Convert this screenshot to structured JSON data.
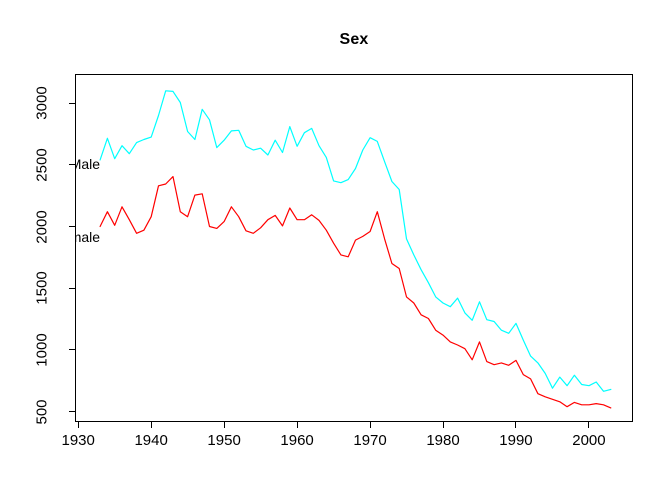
{
  "figure": {
    "background": "#FFFFFF",
    "box_color": "#000000",
    "text_color": "#000000"
  },
  "chart_data": {
    "type": "line",
    "title": "Sex",
    "xlabel": "",
    "ylabel": "",
    "grid": false,
    "legend_position": "inline-labels-at-line-start-clipped-at-left-edge",
    "x_range": [
      1929.7,
      2005.9
    ],
    "y_range": [
      424,
      3228
    ],
    "x_ticks": [
      1930,
      1940,
      1950,
      1960,
      1970,
      1980,
      1990,
      2000
    ],
    "y_ticks": [
      500,
      1000,
      1500,
      2000,
      2500,
      3000
    ],
    "x": [
      1933,
      1934,
      1935,
      1936,
      1937,
      1938,
      1939,
      1940,
      1941,
      1942,
      1943,
      1944,
      1945,
      1946,
      1947,
      1948,
      1949,
      1950,
      1951,
      1952,
      1953,
      1954,
      1955,
      1956,
      1957,
      1958,
      1959,
      1960,
      1961,
      1962,
      1963,
      1964,
      1965,
      1966,
      1967,
      1968,
      1969,
      1970,
      1971,
      1972,
      1973,
      1974,
      1975,
      1976,
      1977,
      1978,
      1979,
      1980,
      1981,
      1982,
      1983,
      1984,
      1985,
      1986,
      1987,
      1988,
      1989,
      1990,
      1991,
      1992,
      1993,
      1994,
      1995,
      1996,
      1997,
      1998,
      1999,
      2000,
      2001,
      2002,
      2003
    ],
    "series": [
      {
        "name": "Male",
        "color": "#00FFFF",
        "label_x": 1933,
        "label_y": 2510,
        "values": [
          2540,
          2715,
          2550,
          2655,
          2590,
          2680,
          2705,
          2725,
          2900,
          3100,
          3095,
          3005,
          2770,
          2705,
          2950,
          2865,
          2640,
          2700,
          2775,
          2780,
          2650,
          2620,
          2635,
          2580,
          2700,
          2600,
          2810,
          2650,
          2760,
          2795,
          2655,
          2560,
          2370,
          2355,
          2380,
          2470,
          2620,
          2720,
          2690,
          2525,
          2365,
          2300,
          1900,
          1770,
          1650,
          1545,
          1430,
          1380,
          1350,
          1420,
          1300,
          1240,
          1390,
          1245,
          1230,
          1160,
          1135,
          1215,
          1080,
          950,
          895,
          810,
          690,
          780,
          710,
          795,
          720,
          710,
          740,
          665,
          680
        ]
      },
      {
        "name": "Female",
        "color": "#FF0000",
        "label_x": 1933,
        "label_y": 1915,
        "values": [
          2000,
          2120,
          2010,
          2160,
          2055,
          1945,
          1970,
          2080,
          2330,
          2345,
          2405,
          2120,
          2080,
          2255,
          2265,
          2000,
          1985,
          2040,
          2160,
          2080,
          1965,
          1945,
          1990,
          2055,
          2090,
          2005,
          2150,
          2055,
          2055,
          2095,
          2050,
          1970,
          1865,
          1770,
          1755,
          1890,
          1920,
          1960,
          2120,
          1900,
          1700,
          1660,
          1430,
          1380,
          1285,
          1255,
          1160,
          1120,
          1065,
          1040,
          1010,
          920,
          1065,
          905,
          880,
          895,
          875,
          915,
          800,
          765,
          645,
          620,
          600,
          580,
          540,
          575,
          555,
          555,
          565,
          555,
          530
        ]
      }
    ]
  }
}
